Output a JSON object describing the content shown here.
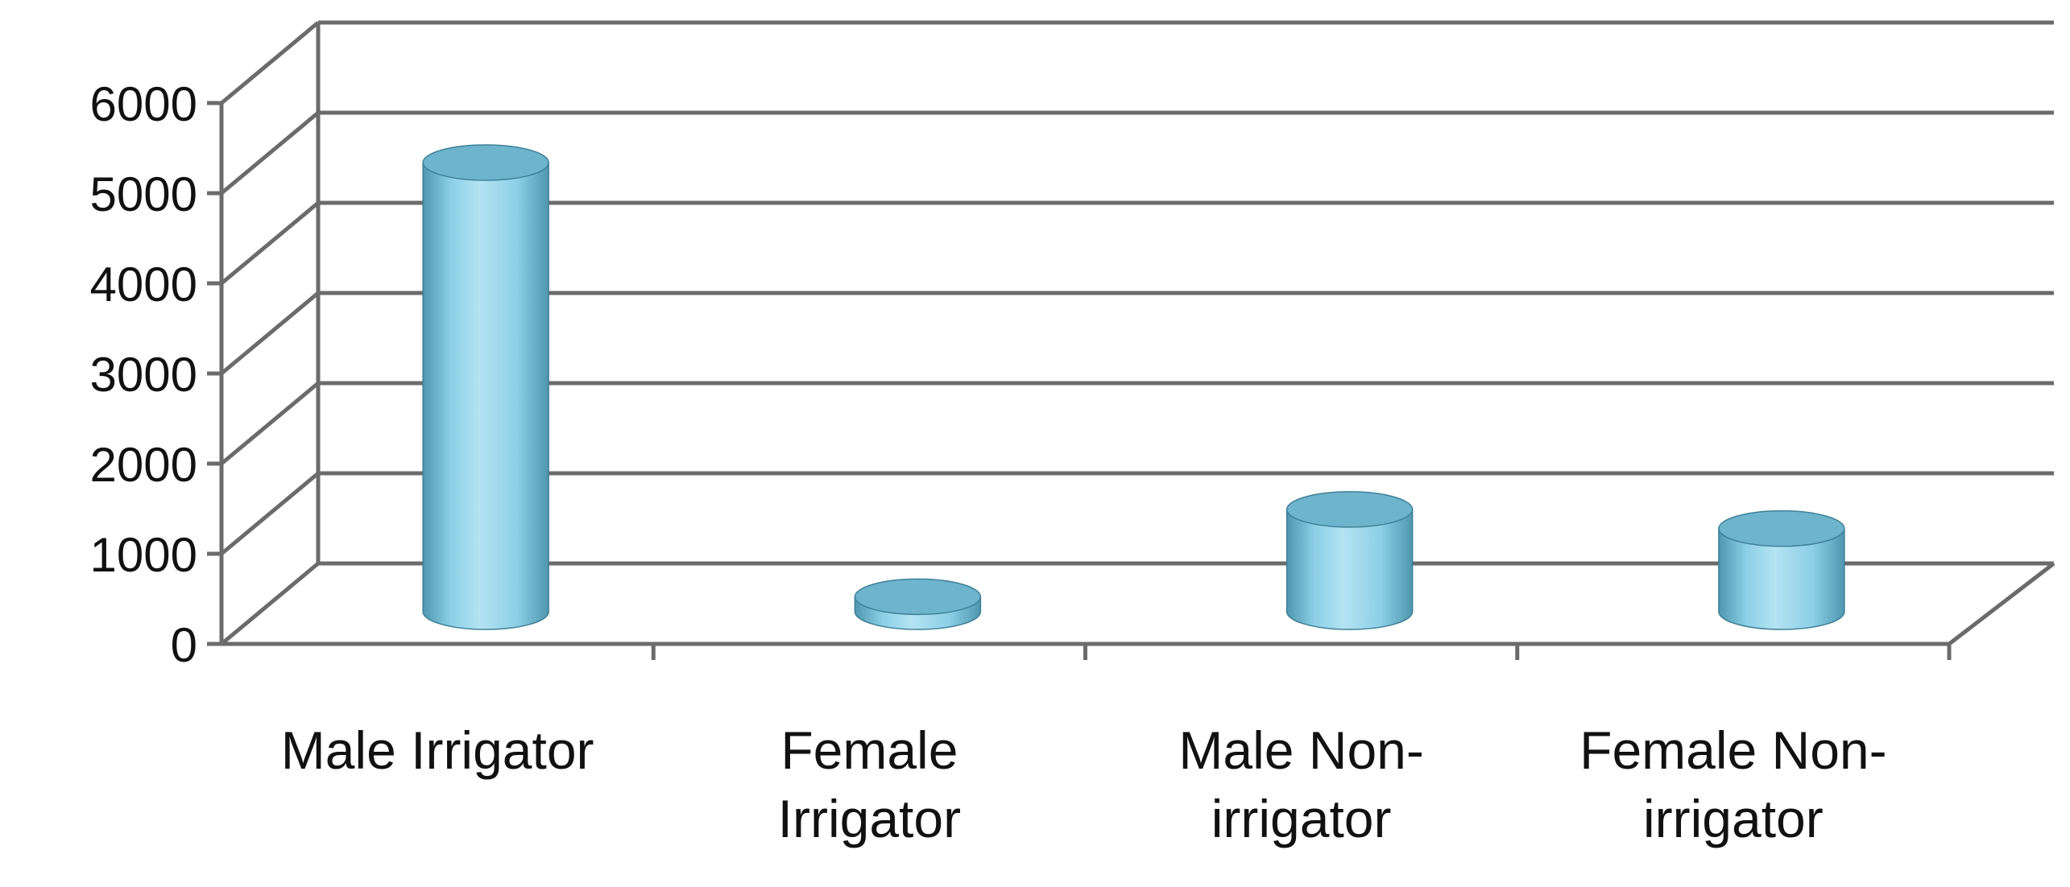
{
  "chart_data": {
    "type": "bar",
    "style": "3d-cylinder",
    "categories": [
      [
        "Male Irrigator"
      ],
      [
        "Female",
        "Irrigator"
      ],
      [
        "Male Non-",
        "irrigator"
      ],
      [
        "Female Non-",
        "irrigator"
      ]
    ],
    "values": [
      5400,
      180,
      1230,
      1000
    ],
    "yticks": [
      "0",
      "1000",
      "2000",
      "3000",
      "4000",
      "5000",
      "6000"
    ],
    "ylim": [
      0,
      6000
    ],
    "grid": true,
    "legend": "none",
    "colors": {
      "bar_light": "#b4e3f2",
      "bar_mid": "#8ccfe6",
      "bar_dark": "#4f96ae",
      "bar_top": "#6fb4cd",
      "bar_edge": "#3e8098",
      "grid": "#6b6b6b"
    }
  }
}
